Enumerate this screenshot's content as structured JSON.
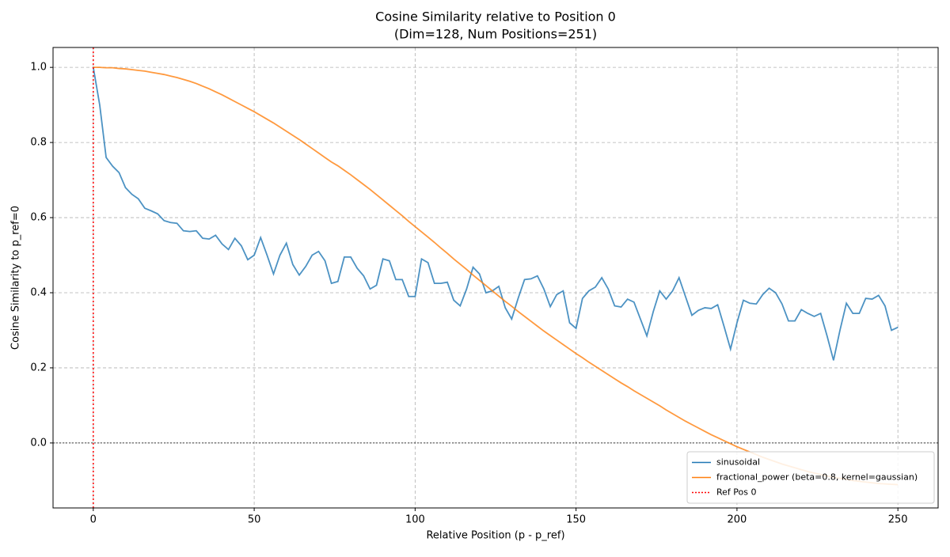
{
  "chart_data": {
    "type": "line",
    "title": "Cosine Similarity relative to Position 0",
    "subtitle": "(Dim=128, Num Positions=251)",
    "x_label": "Relative Position (p - p_ref)",
    "y_label": "Cosine Similarity to p_ref=0",
    "x": [
      0,
      2,
      4,
      6,
      8,
      10,
      12,
      14,
      16,
      18,
      20,
      22,
      24,
      26,
      28,
      30,
      32,
      34,
      36,
      38,
      40,
      42,
      44,
      46,
      48,
      50,
      52,
      54,
      56,
      58,
      60,
      62,
      64,
      66,
      68,
      70,
      72,
      74,
      76,
      78,
      80,
      82,
      84,
      86,
      88,
      90,
      92,
      94,
      96,
      98,
      100,
      102,
      104,
      106,
      108,
      110,
      112,
      114,
      116,
      118,
      120,
      122,
      124,
      126,
      128,
      130,
      132,
      134,
      136,
      138,
      140,
      142,
      144,
      146,
      148,
      150,
      152,
      154,
      156,
      158,
      160,
      162,
      164,
      166,
      168,
      170,
      172,
      174,
      176,
      178,
      180,
      182,
      184,
      186,
      188,
      190,
      192,
      194,
      196,
      198,
      200,
      202,
      204,
      206,
      208,
      210,
      212,
      214,
      216,
      218,
      220,
      222,
      224,
      226,
      228,
      230,
      232,
      234,
      236,
      238,
      240,
      242,
      244,
      246,
      248,
      250
    ],
    "series": [
      {
        "name": "sinusoidal",
        "color": "#1f77b4",
        "values": [
          1.0,
          0.9,
          0.76,
          0.737,
          0.72,
          0.68,
          0.662,
          0.65,
          0.625,
          0.618,
          0.61,
          0.592,
          0.587,
          0.585,
          0.565,
          0.563,
          0.565,
          0.545,
          0.543,
          0.553,
          0.53,
          0.515,
          0.545,
          0.525,
          0.488,
          0.5,
          0.547,
          0.5,
          0.45,
          0.5,
          0.532,
          0.475,
          0.447,
          0.47,
          0.5,
          0.51,
          0.485,
          0.425,
          0.43,
          0.495,
          0.495,
          0.465,
          0.445,
          0.41,
          0.42,
          0.49,
          0.485,
          0.435,
          0.435,
          0.39,
          0.39,
          0.49,
          0.48,
          0.425,
          0.425,
          0.428,
          0.38,
          0.365,
          0.41,
          0.468,
          0.45,
          0.4,
          0.405,
          0.417,
          0.36,
          0.33,
          0.385,
          0.435,
          0.437,
          0.445,
          0.41,
          0.363,
          0.395,
          0.405,
          0.32,
          0.305,
          0.385,
          0.405,
          0.415,
          0.44,
          0.41,
          0.365,
          0.362,
          0.383,
          0.375,
          0.33,
          0.285,
          0.35,
          0.405,
          0.383,
          0.405,
          0.44,
          0.39,
          0.34,
          0.353,
          0.36,
          0.358,
          0.368,
          0.31,
          0.25,
          0.32,
          0.38,
          0.372,
          0.37,
          0.395,
          0.412,
          0.4,
          0.37,
          0.325,
          0.325,
          0.355,
          0.345,
          0.337,
          0.345,
          0.285,
          0.22,
          0.3,
          0.372,
          0.345,
          0.345,
          0.385,
          0.383,
          0.393,
          0.365,
          0.3,
          0.308
        ]
      },
      {
        "name": "fractional_power (beta=0.8, kernel=gaussian)",
        "color": "#ff7f0e",
        "values": [
          1.0,
          1.0,
          0.999,
          0.999,
          0.997,
          0.996,
          0.994,
          0.992,
          0.99,
          0.987,
          0.984,
          0.981,
          0.977,
          0.973,
          0.968,
          0.963,
          0.957,
          0.95,
          0.943,
          0.935,
          0.927,
          0.918,
          0.909,
          0.9,
          0.891,
          0.882,
          0.872,
          0.862,
          0.852,
          0.841,
          0.83,
          0.819,
          0.808,
          0.796,
          0.784,
          0.772,
          0.76,
          0.748,
          0.738,
          0.726,
          0.714,
          0.701,
          0.688,
          0.675,
          0.661,
          0.647,
          0.633,
          0.619,
          0.605,
          0.59,
          0.576,
          0.562,
          0.548,
          0.534,
          0.519,
          0.505,
          0.49,
          0.476,
          0.462,
          0.447,
          0.433,
          0.419,
          0.405,
          0.391,
          0.377,
          0.364,
          0.35,
          0.337,
          0.324,
          0.311,
          0.298,
          0.286,
          0.274,
          0.262,
          0.25,
          0.238,
          0.227,
          0.215,
          0.204,
          0.193,
          0.182,
          0.171,
          0.16,
          0.15,
          0.139,
          0.129,
          0.119,
          0.109,
          0.099,
          0.088,
          0.078,
          0.068,
          0.058,
          0.049,
          0.04,
          0.031,
          0.022,
          0.014,
          0.006,
          -0.002,
          -0.01,
          -0.017,
          -0.024,
          -0.031,
          -0.038,
          -0.044,
          -0.05,
          -0.056,
          -0.061,
          -0.066,
          -0.071,
          -0.076,
          -0.08,
          -0.084,
          -0.088,
          -0.091,
          -0.094,
          -0.097,
          -0.1,
          -0.102,
          -0.104,
          -0.106,
          -0.108,
          -0.109,
          -0.11,
          -0.111
        ]
      }
    ],
    "vlines": [
      {
        "x": 0,
        "name": "Ref Pos 0",
        "color": "#ff0000"
      }
    ],
    "hline": 0,
    "xlim": [
      -12.5,
      262.5
    ],
    "ylim": [
      -0.173,
      1.053
    ],
    "xticks": [
      0,
      50,
      100,
      150,
      200,
      250
    ],
    "yticks": [
      {
        "value": 0,
        "label": "0.0"
      },
      0.2,
      0.4,
      0.6,
      0.8,
      {
        "value": 1,
        "label": "1.0"
      }
    ],
    "grid": true,
    "legend": "lower right"
  }
}
